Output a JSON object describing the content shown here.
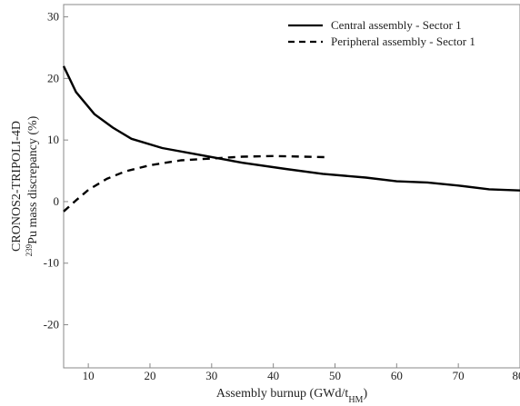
{
  "chart_data": {
    "type": "line",
    "title": "",
    "xlabel": "Assembly burnup (GWd/t",
    "xlabel_sub": "HM",
    "xlabel_end": ")",
    "ylabel_line1": "CRONOS2-TRIPOLI-4D",
    "ylabel_sup": "239",
    "ylabel_line2": "Pu mass discrepancy (%)",
    "xlim": [
      6,
      80
    ],
    "ylim": [
      -27,
      32
    ],
    "xticks": [
      10,
      20,
      30,
      40,
      50,
      60,
      70,
      80
    ],
    "yticks": [
      -20,
      -10,
      0,
      10,
      20,
      30
    ],
    "grid": false,
    "legend_position": "top-right",
    "series": [
      {
        "name": "Central assembly - Sector 1",
        "style": "solid",
        "color": "#000000",
        "x": [
          6,
          8,
          11,
          14,
          17,
          22,
          28,
          35,
          42,
          48,
          55,
          60,
          65,
          70,
          75,
          80
        ],
        "y": [
          22,
          17.8,
          14.2,
          12.0,
          10.2,
          8.7,
          7.6,
          6.3,
          5.3,
          4.5,
          3.9,
          3.3,
          3.1,
          2.6,
          2.0,
          1.8
        ]
      },
      {
        "name": "Peripheral assembly - Sector 1",
        "style": "dashed",
        "color": "#000000",
        "x": [
          6,
          8,
          10,
          13,
          16,
          20,
          25,
          30,
          35,
          40,
          45,
          49
        ],
        "y": [
          -1.6,
          0.2,
          1.9,
          3.7,
          4.9,
          5.9,
          6.7,
          7.0,
          7.3,
          7.4,
          7.3,
          7.2
        ]
      }
    ]
  }
}
